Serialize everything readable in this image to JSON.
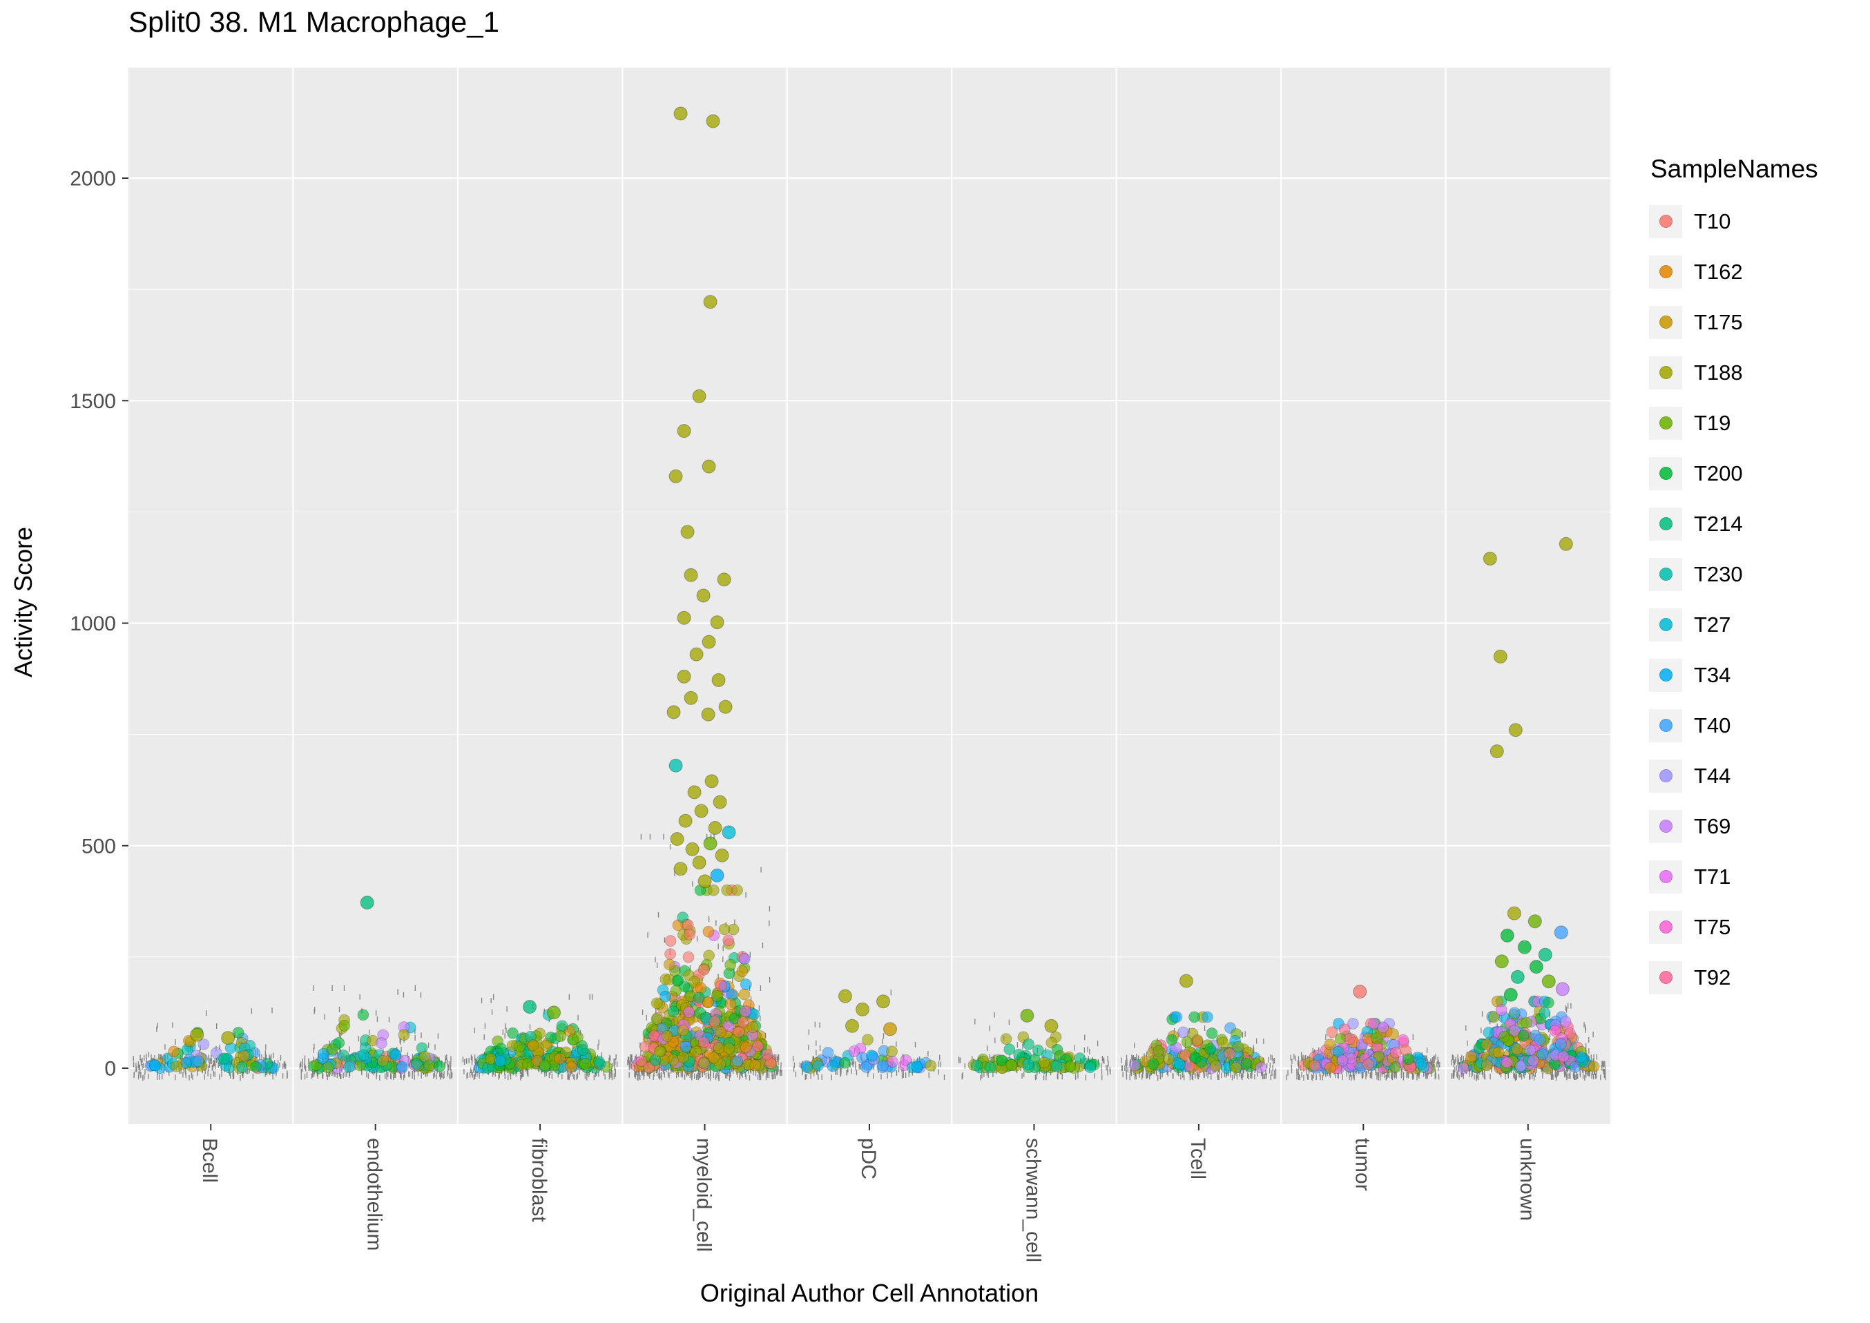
{
  "chart_data": {
    "type": "scatter",
    "title": "Split0 38. M1 Macrophage_1",
    "xlabel": "Original Author Cell Annotation",
    "ylabel": "Activity Score",
    "categories": [
      "Bcell",
      "endothelium",
      "fibroblast",
      "myeloid_cell",
      "pDC",
      "schwann_cell",
      "Tcell",
      "tumor",
      "unknown"
    ],
    "yticks": [
      0,
      500,
      1000,
      1500,
      2000
    ],
    "ylim": [
      -120,
      2250
    ],
    "panel_bg": "#EBEBEB",
    "grid_color": "#FFFFFF",
    "legend": {
      "title": "SampleNames",
      "position": "right",
      "entries": [
        {
          "label": "T10",
          "color": "#F8766D"
        },
        {
          "label": "T162",
          "color": "#E58700"
        },
        {
          "label": "T175",
          "color": "#C99800"
        },
        {
          "label": "T188",
          "color": "#A3A500"
        },
        {
          "label": "T19",
          "color": "#6BB100"
        },
        {
          "label": "T200",
          "color": "#00BA38"
        },
        {
          "label": "T214",
          "color": "#00BF7D"
        },
        {
          "label": "T230",
          "color": "#00C0AF"
        },
        {
          "label": "T27",
          "color": "#00BCD8"
        },
        {
          "label": "T34",
          "color": "#00B0F6"
        },
        {
          "label": "T40",
          "color": "#3FA3FF"
        },
        {
          "label": "T44",
          "color": "#9C94FF"
        },
        {
          "label": "T69",
          "color": "#C77CFF"
        },
        {
          "label": "T71",
          "color": "#E76BF3"
        },
        {
          "label": "T75",
          "color": "#FB61D7"
        },
        {
          "label": "T92",
          "color": "#FF6699"
        }
      ]
    },
    "clusters": [
      {
        "category": "Bcell",
        "points": 65,
        "y_mean": 22,
        "y_max": 80,
        "dashes": 260,
        "dash_tail_max": 130,
        "weights": {
          "T188": 4,
          "T175": 2,
          "T19": 2,
          "T200": 2,
          "T214": 1,
          "T230": 1,
          "T27": 2,
          "T34": 2,
          "T40": 2,
          "T162": 1,
          "T10": 1,
          "T44": 1
        }
      },
      {
        "category": "endothelium",
        "points": 90,
        "y_mean": 28,
        "y_max": 120,
        "dashes": 300,
        "dash_tail_max": 180,
        "weights": {
          "T200": 3,
          "T214": 3,
          "T19": 3,
          "T188": 2,
          "T230": 1,
          "T27": 1,
          "T69": 1,
          "T44": 1,
          "T34": 1,
          "T10": 1
        }
      },
      {
        "category": "fibroblast",
        "points": 160,
        "y_mean": 30,
        "y_max": 120,
        "dashes": 340,
        "dash_tail_max": 160,
        "weights": {
          "T19": 4,
          "T200": 4,
          "T214": 2,
          "T188": 3,
          "T230": 1,
          "T27": 1,
          "T34": 1,
          "T162": 1
        }
      },
      {
        "category": "myeloid_cell",
        "points": 420,
        "y_mean": 85,
        "y_max": 400,
        "dashes": 520,
        "dash_tail_max": 520,
        "weights": {
          "T188": 6,
          "T175": 2,
          "T162": 2,
          "T10": 2,
          "T19": 2,
          "T200": 2,
          "T214": 1,
          "T27": 1,
          "T34": 1,
          "T40": 1,
          "T69": 1,
          "T71": 1,
          "T92": 1
        }
      },
      {
        "category": "pDC",
        "points": 45,
        "y_mean": 18,
        "y_max": 80,
        "dashes": 130,
        "dash_tail_max": 170,
        "weights": {
          "T34": 2,
          "T40": 2,
          "T27": 1,
          "T188": 2,
          "T44": 1,
          "T71": 1,
          "T200": 1
        }
      },
      {
        "category": "schwann_cell",
        "points": 70,
        "y_mean": 18,
        "y_max": 70,
        "dashes": 150,
        "dash_tail_max": 120,
        "weights": {
          "T19": 3,
          "T200": 2,
          "T214": 2,
          "T188": 2,
          "T230": 1
        }
      },
      {
        "category": "Tcell",
        "points": 130,
        "y_mean": 26,
        "y_max": 115,
        "dashes": 420,
        "dash_tail_max": 90,
        "weights": {
          "T188": 4,
          "T175": 2,
          "T19": 2,
          "T200": 2,
          "T27": 2,
          "T34": 2,
          "T40": 2,
          "T44": 1,
          "T69": 1,
          "T92": 1,
          "T10": 1
        }
      },
      {
        "category": "tumor",
        "points": 160,
        "y_mean": 28,
        "y_max": 100,
        "dashes": 420,
        "dash_tail_max": 70,
        "weights": {
          "T188": 2,
          "T175": 2,
          "T19": 2,
          "T10": 2,
          "T92": 2,
          "T71": 2,
          "T69": 2,
          "T44": 2,
          "T34": 2,
          "T40": 2,
          "T27": 1,
          "T200": 1,
          "T162": 1,
          "T75": 1
        }
      },
      {
        "category": "unknown",
        "points": 260,
        "y_mean": 40,
        "y_max": 150,
        "dashes": 440,
        "dash_tail_max": 140,
        "weights": {
          "T188": 3,
          "T175": 2,
          "T19": 2,
          "T200": 2,
          "T214": 2,
          "T230": 1,
          "T27": 2,
          "T34": 2,
          "T40": 2,
          "T44": 2,
          "T69": 2,
          "T71": 1,
          "T75": 1,
          "T92": 1,
          "T10": 1,
          "T162": 1
        }
      }
    ],
    "outliers": [
      {
        "category": "myeloid_cell",
        "y": 2145,
        "dx": -35,
        "sample": "T188"
      },
      {
        "category": "myeloid_cell",
        "y": 2128,
        "dx": 12,
        "sample": "T188"
      },
      {
        "category": "myeloid_cell",
        "y": 1722,
        "dx": 8,
        "sample": "T188"
      },
      {
        "category": "myeloid_cell",
        "y": 1510,
        "dx": -8,
        "sample": "T188"
      },
      {
        "category": "myeloid_cell",
        "y": 1432,
        "dx": -30,
        "sample": "T188"
      },
      {
        "category": "myeloid_cell",
        "y": 1352,
        "dx": 6,
        "sample": "T188"
      },
      {
        "category": "myeloid_cell",
        "y": 1330,
        "dx": -42,
        "sample": "T188"
      },
      {
        "category": "myeloid_cell",
        "y": 1205,
        "dx": -25,
        "sample": "T188"
      },
      {
        "category": "myeloid_cell",
        "y": 1108,
        "dx": -20,
        "sample": "T188"
      },
      {
        "category": "myeloid_cell",
        "y": 1098,
        "dx": 28,
        "sample": "T188"
      },
      {
        "category": "myeloid_cell",
        "y": 1062,
        "dx": -2,
        "sample": "T188"
      },
      {
        "category": "myeloid_cell",
        "y": 1012,
        "dx": -30,
        "sample": "T188"
      },
      {
        "category": "myeloid_cell",
        "y": 1002,
        "dx": 18,
        "sample": "T188"
      },
      {
        "category": "myeloid_cell",
        "y": 958,
        "dx": 6,
        "sample": "T188"
      },
      {
        "category": "myeloid_cell",
        "y": 930,
        "dx": -12,
        "sample": "T188"
      },
      {
        "category": "myeloid_cell",
        "y": 880,
        "dx": -30,
        "sample": "T188"
      },
      {
        "category": "myeloid_cell",
        "y": 872,
        "dx": 20,
        "sample": "T188"
      },
      {
        "category": "myeloid_cell",
        "y": 832,
        "dx": -20,
        "sample": "T188"
      },
      {
        "category": "myeloid_cell",
        "y": 812,
        "dx": 30,
        "sample": "T188"
      },
      {
        "category": "myeloid_cell",
        "y": 800,
        "dx": -45,
        "sample": "T188"
      },
      {
        "category": "myeloid_cell",
        "y": 795,
        "dx": 5,
        "sample": "T188"
      },
      {
        "category": "myeloid_cell",
        "y": 680,
        "dx": -42,
        "sample": "T230"
      },
      {
        "category": "myeloid_cell",
        "y": 645,
        "dx": 10,
        "sample": "T188"
      },
      {
        "category": "myeloid_cell",
        "y": 620,
        "dx": -15,
        "sample": "T188"
      },
      {
        "category": "myeloid_cell",
        "y": 598,
        "dx": 22,
        "sample": "T188"
      },
      {
        "category": "myeloid_cell",
        "y": 578,
        "dx": -5,
        "sample": "T188"
      },
      {
        "category": "myeloid_cell",
        "y": 556,
        "dx": -28,
        "sample": "T188"
      },
      {
        "category": "myeloid_cell",
        "y": 540,
        "dx": 15,
        "sample": "T188"
      },
      {
        "category": "myeloid_cell",
        "y": 530,
        "dx": 35,
        "sample": "T27"
      },
      {
        "category": "myeloid_cell",
        "y": 515,
        "dx": -40,
        "sample": "T188"
      },
      {
        "category": "myeloid_cell",
        "y": 505,
        "dx": 8,
        "sample": "T19"
      },
      {
        "category": "myeloid_cell",
        "y": 492,
        "dx": -18,
        "sample": "T188"
      },
      {
        "category": "myeloid_cell",
        "y": 478,
        "dx": 25,
        "sample": "T188"
      },
      {
        "category": "myeloid_cell",
        "y": 462,
        "dx": -8,
        "sample": "T188"
      },
      {
        "category": "myeloid_cell",
        "y": 448,
        "dx": -35,
        "sample": "T188"
      },
      {
        "category": "myeloid_cell",
        "y": 433,
        "dx": 18,
        "sample": "T34"
      },
      {
        "category": "myeloid_cell",
        "y": 420,
        "dx": 0,
        "sample": "T188"
      },
      {
        "category": "endothelium",
        "y": 372,
        "dx": -12,
        "sample": "T214"
      },
      {
        "category": "unknown",
        "y": 1178,
        "dx": 55,
        "sample": "T188"
      },
      {
        "category": "unknown",
        "y": 1145,
        "dx": -55,
        "sample": "T188"
      },
      {
        "category": "unknown",
        "y": 925,
        "dx": -40,
        "sample": "T188"
      },
      {
        "category": "unknown",
        "y": 760,
        "dx": -18,
        "sample": "T188"
      },
      {
        "category": "unknown",
        "y": 712,
        "dx": -45,
        "sample": "T188"
      },
      {
        "category": "unknown",
        "y": 348,
        "dx": -20,
        "sample": "T188"
      },
      {
        "category": "unknown",
        "y": 330,
        "dx": 10,
        "sample": "T19"
      },
      {
        "category": "unknown",
        "y": 305,
        "dx": 48,
        "sample": "T40"
      },
      {
        "category": "unknown",
        "y": 298,
        "dx": -30,
        "sample": "T200"
      },
      {
        "category": "unknown",
        "y": 272,
        "dx": -5,
        "sample": "T200"
      },
      {
        "category": "unknown",
        "y": 255,
        "dx": 25,
        "sample": "T214"
      },
      {
        "category": "unknown",
        "y": 240,
        "dx": -38,
        "sample": "T19"
      },
      {
        "category": "unknown",
        "y": 228,
        "dx": 12,
        "sample": "T200"
      },
      {
        "category": "unknown",
        "y": 205,
        "dx": -15,
        "sample": "T214"
      },
      {
        "category": "unknown",
        "y": 195,
        "dx": 30,
        "sample": "T19"
      },
      {
        "category": "unknown",
        "y": 178,
        "dx": 50,
        "sample": "T69"
      },
      {
        "category": "unknown",
        "y": 165,
        "dx": -25,
        "sample": "T200"
      },
      {
        "category": "Tcell",
        "y": 196,
        "dx": -18,
        "sample": "T188"
      },
      {
        "category": "tumor",
        "y": 172,
        "dx": -5,
        "sample": "T10"
      },
      {
        "category": "pDC",
        "y": 162,
        "dx": -35,
        "sample": "T188"
      },
      {
        "category": "pDC",
        "y": 150,
        "dx": 20,
        "sample": "T188"
      },
      {
        "category": "pDC",
        "y": 132,
        "dx": -10,
        "sample": "T188"
      },
      {
        "category": "pDC",
        "y": 95,
        "dx": -25,
        "sample": "T188"
      },
      {
        "category": "pDC",
        "y": 88,
        "dx": 30,
        "sample": "T175"
      },
      {
        "category": "schwann_cell",
        "y": 118,
        "dx": -10,
        "sample": "T19"
      },
      {
        "category": "schwann_cell",
        "y": 95,
        "dx": 25,
        "sample": "T188"
      },
      {
        "category": "Bcell",
        "y": 75,
        "dx": -20,
        "sample": "T188"
      },
      {
        "category": "Bcell",
        "y": 68,
        "dx": 25,
        "sample": "T188"
      },
      {
        "category": "fibroblast",
        "y": 138,
        "dx": -15,
        "sample": "T214"
      },
      {
        "category": "fibroblast",
        "y": 125,
        "dx": 20,
        "sample": "T19"
      }
    ]
  }
}
